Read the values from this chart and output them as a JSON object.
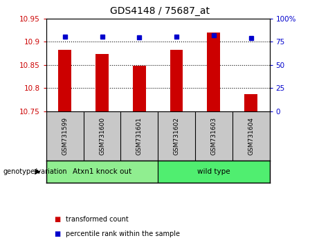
{
  "title": "GDS4148 / 75687_at",
  "samples": [
    "GSM731599",
    "GSM731600",
    "GSM731601",
    "GSM731602",
    "GSM731603",
    "GSM731604"
  ],
  "red_values": [
    10.883,
    10.873,
    10.848,
    10.882,
    10.919,
    10.787
  ],
  "blue_values": [
    80,
    80,
    79.5,
    80,
    81.5,
    79
  ],
  "ymin": 10.75,
  "ymax": 10.95,
  "yticks": [
    10.75,
    10.8,
    10.85,
    10.9,
    10.95
  ],
  "ytick_labels": [
    "10.75",
    "10.8",
    "10.85",
    "10.9",
    "10.95"
  ],
  "y2min": 0,
  "y2max": 100,
  "y2ticks": [
    0,
    25,
    50,
    75,
    100
  ],
  "y2tick_labels": [
    "0",
    "25",
    "50",
    "75",
    "100%"
  ],
  "group1_label": "Atxn1 knock out",
  "group2_label": "wild type",
  "group1_color": "#90EE90",
  "group2_color": "#50EE70",
  "bar_color": "#CC0000",
  "dot_color": "#0000CC",
  "background_color": "#FFFFFF",
  "tick_label_color_left": "#CC0000",
  "tick_label_color_right": "#0000CC",
  "bar_width": 0.35,
  "legend_text1": "transformed count",
  "legend_text2": "percentile rank within the sample",
  "genotype_label": "genotype/variation"
}
